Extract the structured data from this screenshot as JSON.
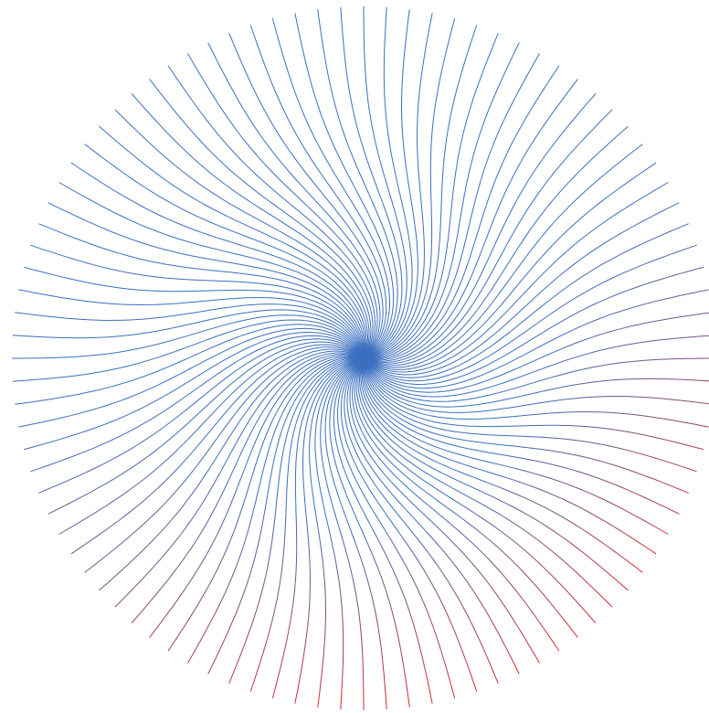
{
  "artwork": {
    "kind": "radial-spiral-line-art",
    "line_count": 96,
    "colors": {
      "background": "#ffffff",
      "primary": "#3a6fbf",
      "secondary": "#d42a2a"
    }
  }
}
